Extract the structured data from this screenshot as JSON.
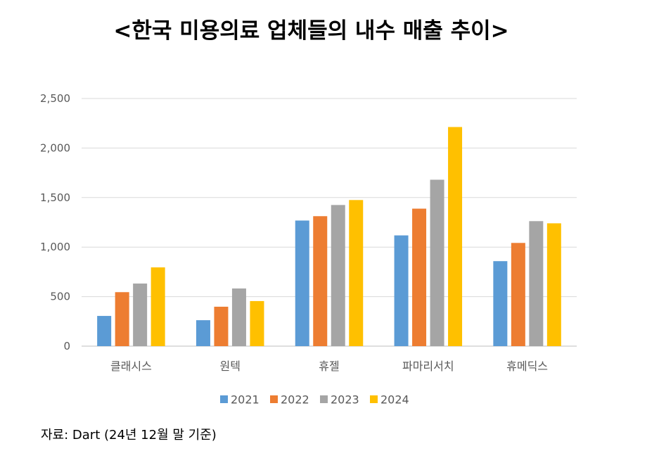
{
  "chart_data": {
    "type": "bar",
    "title": "<한국 미용의료 업체들의 내수 매출 추이>",
    "categories": [
      "클래시스",
      "원텍",
      "휴젤",
      "파마리서치",
      "휴메딕스"
    ],
    "series": [
      {
        "name": "2021",
        "color": "#5B9BD5",
        "values": [
          305,
          262,
          1268,
          1118,
          858
        ]
      },
      {
        "name": "2022",
        "color": "#ED7D31",
        "values": [
          545,
          398,
          1312,
          1388,
          1042
        ]
      },
      {
        "name": "2023",
        "color": "#A5A5A5",
        "values": [
          632,
          582,
          1425,
          1680,
          1262
        ]
      },
      {
        "name": "2024",
        "color": "#FFC000",
        "values": [
          795,
          455,
          1475,
          2212,
          1240
        ]
      }
    ],
    "ylim": [
      0,
      2500
    ],
    "yticks": [
      0,
      500,
      1000,
      1500,
      2000,
      2500
    ],
    "ytick_labels": [
      "0",
      "500",
      "1,000",
      "1,500",
      "2,000",
      "2,500"
    ],
    "grid": true,
    "legend": "bottom",
    "xlabel": "",
    "ylabel": ""
  },
  "source_note": "자료: Dart (24년 12월 말 기준)"
}
